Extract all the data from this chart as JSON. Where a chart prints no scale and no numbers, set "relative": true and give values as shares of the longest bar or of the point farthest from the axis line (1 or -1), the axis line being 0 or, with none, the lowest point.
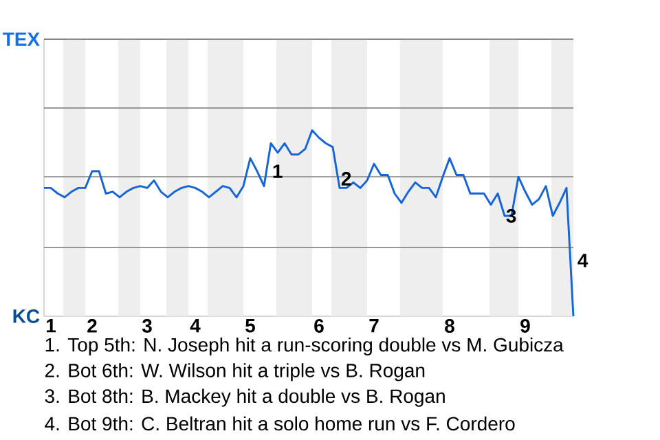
{
  "chart_data": {
    "type": "line",
    "relative": true,
    "categories": [
      null,
      "1",
      null,
      null,
      null,
      null,
      null,
      "2",
      null,
      null,
      null,
      null,
      null,
      null,
      null,
      "3",
      null,
      null,
      null,
      null,
      null,
      null,
      "4",
      null,
      null,
      null,
      null,
      null,
      null,
      null,
      "5",
      null,
      null,
      null,
      null,
      null,
      null,
      null,
      null,
      null,
      "6",
      null,
      null,
      null,
      null,
      null,
      null,
      null,
      "7",
      null,
      null,
      null,
      null,
      null,
      null,
      null,
      null,
      null,
      null,
      "8",
      null,
      null,
      null,
      null,
      null,
      null,
      null,
      null,
      null,
      null,
      "9",
      null,
      null,
      null,
      null,
      null,
      null,
      null
    ],
    "ref_lines": [
      {
        "axis": "y",
        "value": 0.37,
        "color": "#888888"
      },
      {
        "axis": "y",
        "value": 0.75,
        "color": "#888888"
      },
      {
        "axis": "y",
        "value": 1.12,
        "color": "#888888"
      },
      {
        "axis": "y",
        "value": 1.49,
        "color": "#888888"
      }
    ],
    "series": [
      {
        "color": "#1565d8",
        "values": [
          0.69,
          0.69,
          0.66,
          0.64,
          0.67,
          0.69,
          0.69,
          0.78,
          0.78,
          0.66,
          0.67,
          0.64,
          0.67,
          0.69,
          0.7,
          0.69,
          0.73,
          0.67,
          0.64,
          0.67,
          0.69,
          0.7,
          0.69,
          0.67,
          0.64,
          0.67,
          0.7,
          0.69,
          0.64,
          0.7,
          0.85,
          0.78,
          0.7,
          0.93,
          0.88,
          0.93,
          0.87,
          0.87,
          0.9,
          1,
          0.96,
          0.93,
          0.91,
          0.69,
          0.69,
          0.72,
          0.69,
          0.73,
          0.82,
          0.76,
          0.76,
          0.66,
          0.61,
          0.67,
          0.72,
          0.69,
          0.69,
          0.64,
          0.75,
          0.85,
          0.76,
          0.76,
          0.66,
          0.66,
          0.66,
          0.6,
          0.66,
          0.54,
          0.54,
          0.75,
          0.67,
          0.6,
          0.63,
          0.7,
          0.54,
          0.61,
          0.69,
          0
        ]
      }
    ],
    "annotations": [
      "TEX",
      "KC",
      "1",
      "2",
      "3",
      "4",
      "1. Top 5th: N. Joseph hit a run-scoring double vs M. Gubicza",
      "2. Bot 6th: W. Wilson hit a triple vs B. Rogan",
      "3. Bot 8th: B. Mackey hit a double vs B. Rogan",
      "4. Bot 9th: C. Beltran hit a solo home run vs F. Cordero"
    ]
  }
}
